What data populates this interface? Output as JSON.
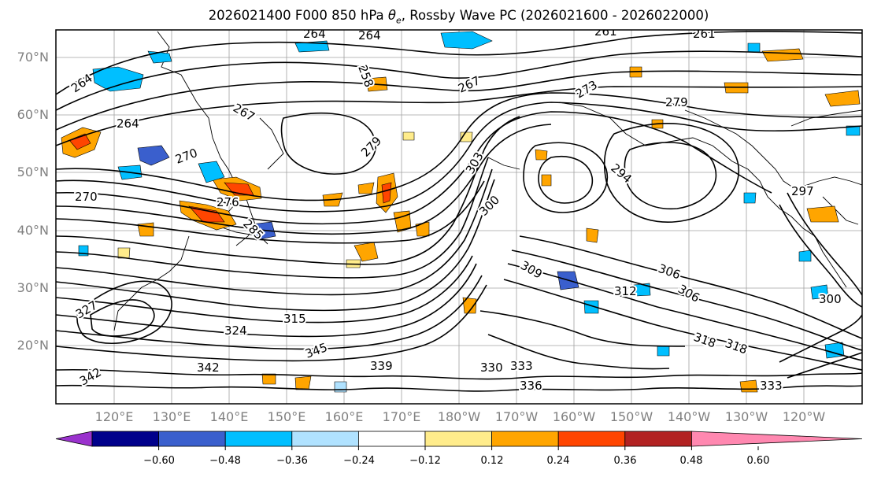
{
  "title_prefix": "2026021400 F000 850 hPa",
  "title_theta": "θ",
  "title_sub": "e",
  "title_suffix": ", Rossby Wave PC (2026021600 - 2026022000)",
  "lat_labels": [
    "70°N",
    "60°N",
    "50°N",
    "40°N",
    "30°N",
    "20°N"
  ],
  "lon_labels": [
    "120°E",
    "130°E",
    "140°E",
    "150°E",
    "160°E",
    "170°E",
    "180°W",
    "170°W",
    "160°W",
    "150°W",
    "140°W",
    "130°W",
    "120°W"
  ],
  "contour_labels": [
    "264",
    "264",
    "264",
    "258",
    "261",
    "261",
    "267",
    "273",
    "279",
    "264",
    "270",
    "279",
    "276",
    "285",
    "294",
    "297",
    "300",
    "303",
    "306",
    "309",
    "312",
    "315",
    "318",
    "318",
    "324",
    "327",
    "330",
    "333",
    "336",
    "339",
    "342",
    "345",
    "270",
    "267",
    "300",
    "306",
    "333",
    "342"
  ],
  "colorbar": {
    "colors": [
      "#9a32cd",
      "#00008b",
      "#3a5fcd",
      "#00bfff",
      "#b0e2ff",
      "#ffffff",
      "#ffec8b",
      "#ffa500",
      "#ff4500",
      "#b22222",
      "#ff88b0"
    ],
    "tick_labels": [
      "−0.60",
      "−0.48",
      "−0.36",
      "−0.24",
      "−0.12",
      "0.12",
      "0.24",
      "0.36",
      "0.48",
      "0.60"
    ]
  },
  "chart_data": {
    "type": "heatmap",
    "title": "2026021400 F000 850 hPa θe, Rossby Wave PC (2026021600 - 2026022000)",
    "variable": "850 hPa equivalent potential temperature (K) contours; Rossby wave PC shaded",
    "lat_range": [
      10,
      75
    ],
    "lon_ticks": [
      "120°E",
      "130°E",
      "140°E",
      "150°E",
      "160°E",
      "170°E",
      "180°W",
      "170°W",
      "160°W",
      "150°W",
      "140°W",
      "130°W",
      "120°W"
    ],
    "lat_ticks": [
      "70°N",
      "60°N",
      "50°N",
      "40°N",
      "30°N",
      "20°N"
    ],
    "colorbar_levels": [
      -0.6,
      -0.48,
      -0.36,
      -0.24,
      -0.12,
      0.12,
      0.24,
      0.36,
      0.48,
      0.6
    ],
    "colorbar_extend": "both"
  }
}
